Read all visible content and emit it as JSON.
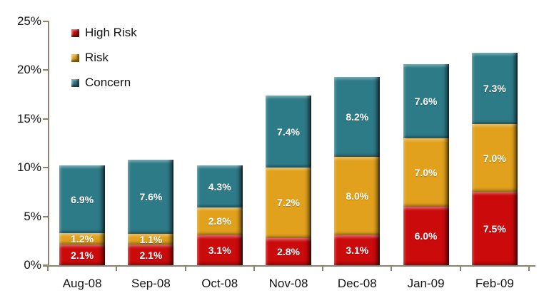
{
  "chart_data": {
    "type": "bar",
    "variant": "stacked-column-3d",
    "title": "",
    "categories": [
      "Aug-08",
      "Sep-08",
      "Oct-08",
      "Nov-08",
      "Dec-08",
      "Jan-09",
      "Feb-09"
    ],
    "series": [
      {
        "name": "High Risk",
        "color": "#CB0A0C",
        "values": [
          2.1,
          2.1,
          3.1,
          2.8,
          3.1,
          6.0,
          7.5
        ],
        "labels": [
          "2.1%",
          "2.1%",
          "3.1%",
          "2.8%",
          "3.1%",
          "6.0%",
          "7.5%"
        ]
      },
      {
        "name": "Risk",
        "color": "#E1A11C",
        "values": [
          1.2,
          1.1,
          2.8,
          7.2,
          8.0,
          7.0,
          7.0
        ],
        "labels": [
          "1.2%",
          "1.1%",
          "2.8%",
          "7.2%",
          "8.0%",
          "7.0%",
          "7.0%"
        ]
      },
      {
        "name": "Concern",
        "color": "#2E7B88",
        "values": [
          6.9,
          7.6,
          4.3,
          7.4,
          8.2,
          7.6,
          7.3
        ],
        "labels": [
          "6.9%",
          "7.6%",
          "4.3%",
          "7.4%",
          "8.2%",
          "7.6%",
          "7.3%"
        ]
      }
    ],
    "stack_order_bottom_to_top": [
      "High Risk",
      "Risk",
      "Concern"
    ],
    "y_axis": {
      "min": 0,
      "max": 25,
      "step": 5,
      "tick_labels": [
        "0%",
        "5%",
        "10%",
        "15%",
        "20%",
        "25%"
      ]
    },
    "x_axis": {
      "tick_labels": [
        "Aug-08",
        "Sep-08",
        "Oct-08",
        "Nov-08",
        "Dec-08",
        "Jan-09",
        "Feb-09"
      ]
    },
    "legend": {
      "position": "top-left",
      "entries": [
        "High Risk",
        "Risk",
        "Concern"
      ]
    },
    "grid": false,
    "data_label_color": "#FFFFFF",
    "axis_color": "#8C8270",
    "text_color": "#141414",
    "background": "#FFFFFF"
  }
}
